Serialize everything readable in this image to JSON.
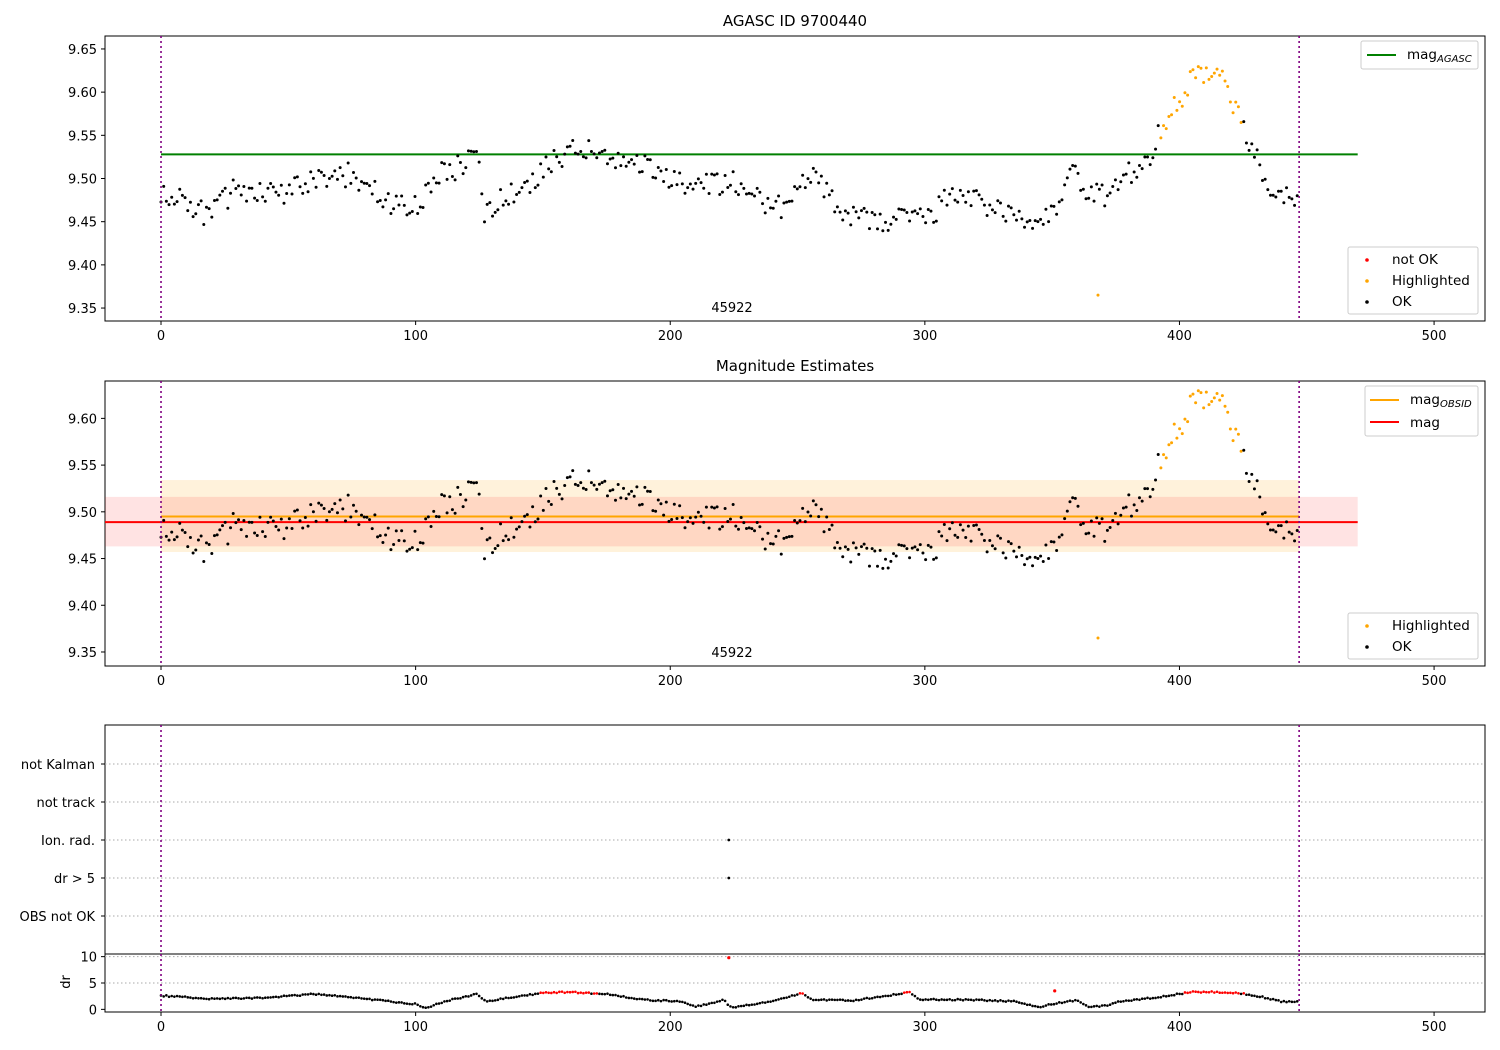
{
  "chart_data": [
    {
      "type": "scatter",
      "title": "AGASC ID 9700440",
      "obsid_label": "45922",
      "xlim": [
        -22,
        520
      ],
      "ylim": [
        9.335,
        9.665
      ],
      "xticks": [
        0,
        100,
        200,
        300,
        400,
        500
      ],
      "yticks": [
        9.35,
        9.4,
        9.45,
        9.5,
        9.55,
        9.6,
        9.65
      ],
      "ytick_labels": [
        "9.35",
        "9.40",
        "9.45",
        "9.50",
        "9.55",
        "9.60",
        "9.65"
      ],
      "vlines": [
        0,
        447
      ],
      "hlines": [
        {
          "name": "mag_AGASC",
          "y": 9.528,
          "x_range": [
            0,
            470
          ],
          "color": "#008000"
        }
      ],
      "legend_lines": [
        {
          "label": "mag",
          "sub": "AGASC",
          "color": "#008000"
        }
      ],
      "legend_points": [
        {
          "label": "not OK",
          "color": "#ff0000"
        },
        {
          "label": "Highlighted",
          "color": "#ffa500"
        },
        {
          "label": "OK",
          "color": "#000000"
        }
      ]
    },
    {
      "type": "scatter",
      "title": "Magnitude Estimates",
      "obsid_label": "45922",
      "xlim": [
        -22,
        520
      ],
      "ylim": [
        9.335,
        9.64
      ],
      "xticks": [
        0,
        100,
        200,
        300,
        400,
        500
      ],
      "yticks": [
        9.35,
        9.4,
        9.45,
        9.5,
        9.55,
        9.6
      ],
      "ytick_labels": [
        "9.35",
        "9.40",
        "9.45",
        "9.50",
        "9.55",
        "9.60"
      ],
      "vlines": [
        0,
        447
      ],
      "bands": [
        {
          "x_range": [
            0,
            447
          ],
          "y_range": [
            9.457,
            9.534
          ],
          "color": "#ffa500",
          "opacity": 0.14
        },
        {
          "x_range": [
            -22,
            470
          ],
          "y_range": [
            9.463,
            9.516
          ],
          "color": "#ff0000",
          "opacity": 0.11
        }
      ],
      "hlines": [
        {
          "name": "mag_OBSID",
          "y": 9.495,
          "x_range": [
            0,
            447
          ],
          "color": "#ffa500"
        },
        {
          "name": "mag",
          "y": 9.489,
          "x_range": [
            -22,
            470
          ],
          "color": "#ff0000"
        }
      ],
      "legend_lines": [
        {
          "label": "mag",
          "sub": "OBSID",
          "color": "#ffa500"
        },
        {
          "label": "mag",
          "sub": "",
          "color": "#ff0000"
        }
      ],
      "legend_points": [
        {
          "label": "Highlighted",
          "color": "#ffa500"
        },
        {
          "label": "OK",
          "color": "#000000"
        }
      ]
    },
    {
      "type": "scatter",
      "title": "",
      "xlim": [
        -22,
        520
      ],
      "vlines": [
        0,
        447
      ],
      "categories": [
        "OBS not OK",
        "dr > 5",
        "Ion. rad.",
        "not track",
        "not Kalman"
      ],
      "flag_points": [
        {
          "x": 223,
          "category": "dr > 5"
        },
        {
          "x": 223,
          "category": "Ion. rad."
        }
      ]
    },
    {
      "type": "scatter",
      "title": "",
      "ylabel": "dr",
      "xlim": [
        -22,
        520
      ],
      "ylim": [
        -0.5,
        10.5
      ],
      "xticks": [
        0,
        100,
        200,
        300,
        400,
        500
      ],
      "yticks": [
        0,
        5,
        10
      ],
      "ytick_labels": [
        "0",
        "5",
        "10"
      ],
      "vlines": [
        0,
        447
      ],
      "outliers": [
        {
          "x": 223,
          "y": 9.8,
          "color": "#ff0000"
        },
        {
          "x": 351,
          "y": 3.5,
          "color": "#ff0000"
        }
      ]
    }
  ]
}
